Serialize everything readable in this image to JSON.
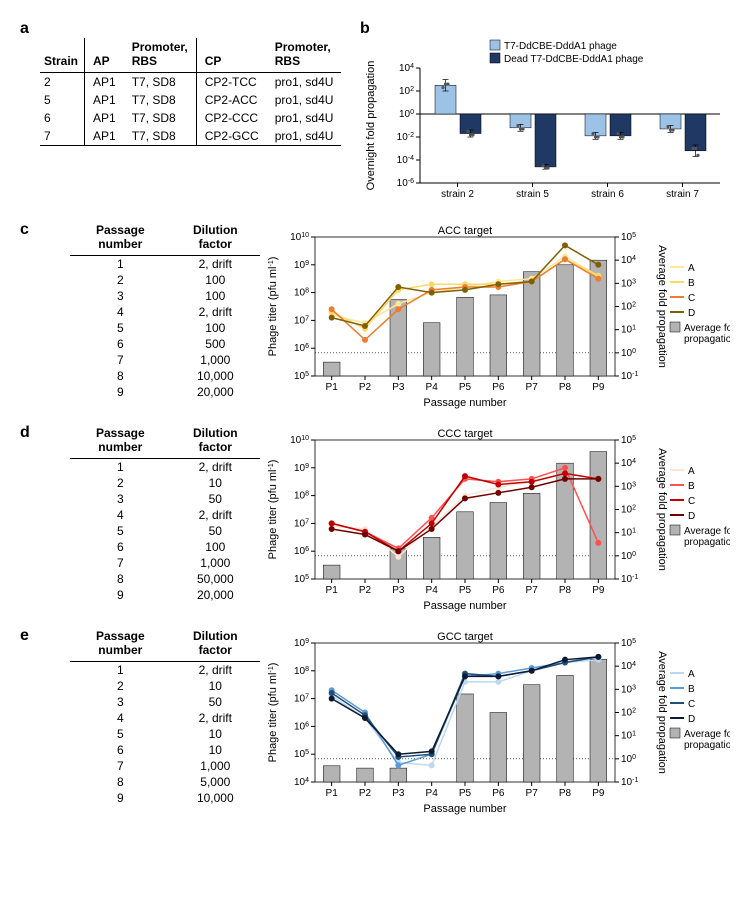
{
  "panelA": {
    "label": "a",
    "headers": [
      "Strain",
      "AP",
      "Promoter,\nRBS",
      "CP",
      "Promoter,\nRBS"
    ],
    "rows": [
      [
        "2",
        "AP1",
        "T7, SD8",
        "CP2-TCC",
        "pro1, sd4U"
      ],
      [
        "5",
        "AP1",
        "T7, SD8",
        "CP2-ACC",
        "pro1, sd4U"
      ],
      [
        "6",
        "AP1",
        "T7, SD8",
        "CP2-CCC",
        "pro1, sd4U"
      ],
      [
        "7",
        "AP1",
        "T7, SD8",
        "CP2-GCC",
        "pro1, sd4U"
      ]
    ]
  },
  "panelB": {
    "label": "b",
    "legend": [
      {
        "label": "T7-DdCBE-DddA1 phage",
        "color": "#9cc3e6"
      },
      {
        "label": "Dead T7-DdCBE-DddA1 phage",
        "color": "#1f3864"
      }
    ],
    "y_label": "Overnight fold propagation",
    "y_ticks": [
      -6,
      -4,
      -2,
      0,
      2,
      4
    ],
    "categories": [
      "strain 2",
      "strain 5",
      "strain 6",
      "strain 7"
    ],
    "series": [
      {
        "color": "#9cc3e6",
        "log_values": [
          2.5,
          -1.2,
          -1.9,
          -1.3
        ],
        "err": [
          0.5,
          0.3,
          0.3,
          0.3
        ],
        "points_x_jitter": [
          0,
          0,
          0
        ],
        "scatter": [
          [
            2.3,
            2.6,
            2.6
          ],
          [
            -1.0,
            -1.3,
            -1.3
          ],
          [
            -1.7,
            -2.0,
            -2.0
          ],
          [
            -1.1,
            -1.4,
            -1.4
          ]
        ]
      },
      {
        "color": "#1f3864",
        "log_values": [
          -1.7,
          -4.6,
          -1.9,
          -3.2
        ],
        "err": [
          0.3,
          0.2,
          0.3,
          0.5
        ],
        "scatter": [
          [
            -1.5,
            -1.8,
            -1.8
          ],
          [
            -4.5,
            -4.7,
            -4.7
          ],
          [
            -1.7,
            -2.0,
            -2.0
          ],
          [
            -3.0,
            -3.0,
            -3.6
          ]
        ]
      }
    ],
    "bg": "#ffffff",
    "axis_color": "#000000"
  },
  "line_chart_common": {
    "x_categories": [
      "P1",
      "P2",
      "P3",
      "P4",
      "P5",
      "P6",
      "P7",
      "P8",
      "P9"
    ],
    "x_label": "Passage number",
    "y_left_label": "Phage titer (pfu ml⁻¹)",
    "y_right_label": "Average fold propagation",
    "bar_color": "#b3b3b3",
    "bar_legend": "Average fold\npropagation",
    "grid_color": "#000000",
    "axis_color": "#000000"
  },
  "panelC": {
    "label": "c",
    "title": "ACC target",
    "dilution": [
      [
        "1",
        "2, drift"
      ],
      [
        "2",
        "100"
      ],
      [
        "3",
        "100"
      ],
      [
        "4",
        "2, drift"
      ],
      [
        "5",
        "100"
      ],
      [
        "6",
        "500"
      ],
      [
        "7",
        "1,000"
      ],
      [
        "8",
        "10,000"
      ],
      [
        "9",
        "20,000"
      ]
    ],
    "y_left_ticks": [
      5,
      6,
      7,
      8,
      9,
      10
    ],
    "y_right_ticks": [
      -1,
      0,
      1,
      2,
      3,
      4,
      5
    ],
    "bars_rightlog": [
      -0.4,
      null,
      2.3,
      1.3,
      2.4,
      2.5,
      3.5,
      3.8,
      4.0
    ],
    "series": [
      {
        "label": "A",
        "color": "#ffe699",
        "values_leftlog": [
          7.2,
          6.9,
          7.6,
          8.0,
          8.2,
          8.4,
          8.5,
          9.3,
          8.6
        ]
      },
      {
        "label": "B",
        "color": "#ffd966",
        "values_leftlog": [
          7.3,
          6.7,
          8.1,
          8.3,
          8.3,
          8.3,
          8.4,
          9.2,
          8.6
        ]
      },
      {
        "label": "C",
        "color": "#ed7d31",
        "values_leftlog": [
          7.4,
          6.3,
          7.4,
          8.1,
          8.2,
          8.2,
          8.4,
          9.2,
          8.5
        ]
      },
      {
        "label": "D",
        "color": "#7f6000",
        "values_leftlog": [
          7.1,
          6.8,
          8.2,
          8.0,
          8.1,
          8.3,
          8.4,
          9.7,
          9.0
        ]
      }
    ]
  },
  "panelD": {
    "label": "d",
    "title": "CCC target",
    "dilution": [
      [
        "1",
        "2, drift"
      ],
      [
        "2",
        "10"
      ],
      [
        "3",
        "50"
      ],
      [
        "4",
        "2, drift"
      ],
      [
        "5",
        "50"
      ],
      [
        "6",
        "100"
      ],
      [
        "7",
        "1,000"
      ],
      [
        "8",
        "50,000"
      ],
      [
        "9",
        "20,000"
      ]
    ],
    "y_left_ticks": [
      5,
      6,
      7,
      8,
      9,
      10
    ],
    "y_right_ticks": [
      -1,
      0,
      1,
      2,
      3,
      4,
      5
    ],
    "bars_rightlog": [
      -0.4,
      null,
      0.3,
      0.8,
      1.9,
      2.3,
      2.7,
      4.0,
      4.5
    ],
    "series": [
      {
        "label": "A",
        "color": "#fbe5d6",
        "values_leftlog": [
          6.9,
          6.8,
          5.8,
          6.9,
          8.0,
          8.3,
          8.5,
          8.8,
          8.6
        ]
      },
      {
        "label": "B",
        "color": "#ff5050",
        "values_leftlog": [
          7.0,
          6.7,
          6.1,
          7.2,
          8.6,
          8.5,
          8.6,
          9.0,
          6.3
        ]
      },
      {
        "label": "C",
        "color": "#c00000",
        "values_leftlog": [
          7.0,
          6.7,
          6.0,
          7.0,
          8.7,
          8.4,
          8.5,
          8.8,
          8.6
        ]
      },
      {
        "label": "D",
        "color": "#700000",
        "values_leftlog": [
          6.8,
          6.6,
          6.0,
          6.8,
          7.9,
          8.1,
          8.3,
          8.6,
          8.6
        ]
      }
    ]
  },
  "panelE": {
    "label": "e",
    "title": "GCC target",
    "dilution": [
      [
        "1",
        "2, drift"
      ],
      [
        "2",
        "10"
      ],
      [
        "3",
        "50"
      ],
      [
        "4",
        "2, drift"
      ],
      [
        "5",
        "10"
      ],
      [
        "6",
        "10"
      ],
      [
        "7",
        "1,000"
      ],
      [
        "8",
        "5,000"
      ],
      [
        "9",
        "10,000"
      ]
    ],
    "y_left_ticks": [
      4,
      5,
      6,
      7,
      8,
      9
    ],
    "y_right_ticks": [
      -1,
      0,
      1,
      2,
      3,
      4,
      5
    ],
    "bars_rightlog": [
      -0.3,
      -0.4,
      -0.4,
      null,
      2.8,
      2.0,
      3.2,
      3.6,
      4.3
    ],
    "series": [
      {
        "label": "A",
        "color": "#bdd7ee",
        "values_leftlog": [
          7.1,
          6.3,
          4.7,
          4.6,
          7.6,
          7.6,
          8.0,
          8.3,
          8.4
        ]
      },
      {
        "label": "B",
        "color": "#5b9bd5",
        "values_leftlog": [
          7.3,
          6.5,
          4.6,
          5.0,
          7.8,
          7.9,
          8.1,
          8.3,
          8.5
        ]
      },
      {
        "label": "C",
        "color": "#1f4e79",
        "values_leftlog": [
          7.2,
          6.4,
          4.9,
          5.0,
          7.9,
          7.8,
          8.0,
          8.3,
          8.5
        ]
      },
      {
        "label": "D",
        "color": "#0d1a33",
        "values_leftlog": [
          7.0,
          6.3,
          5.0,
          5.1,
          7.8,
          7.8,
          8.0,
          8.4,
          8.5
        ]
      }
    ]
  }
}
